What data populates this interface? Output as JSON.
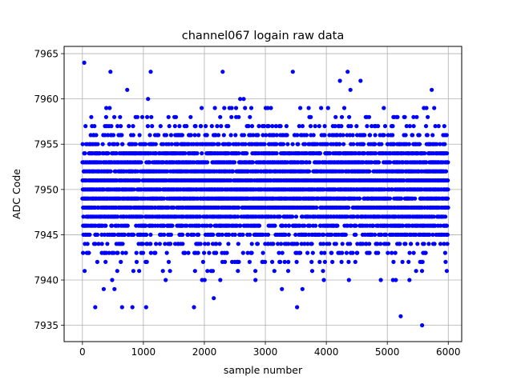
{
  "chart_data": {
    "type": "scatter",
    "title": "channel067 logain raw data",
    "xlabel": "sample number",
    "ylabel": "ADC Code",
    "xlim": [
      -300,
      6220
    ],
    "ylim": [
      7933.2,
      7965.8
    ],
    "xticks": [
      0,
      1000,
      2000,
      3000,
      4000,
      5000,
      6000
    ],
    "yticks": [
      7935,
      7940,
      7945,
      7950,
      7955,
      7960,
      7965
    ],
    "grid": true,
    "series": [
      {
        "color": "#0000ff",
        "marker": "circle",
        "n_samples": 6000,
        "x_step": 1,
        "y_dense_range": [
          7945,
          7958
        ],
        "y_sparse_range": [
          7937,
          7963
        ],
        "outliers": [
          {
            "x": 30,
            "y": 7964
          },
          {
            "x": 460,
            "y": 7963
          },
          {
            "x": 1120,
            "y": 7963
          },
          {
            "x": 2300,
            "y": 7963
          },
          {
            "x": 3450,
            "y": 7963
          },
          {
            "x": 4350,
            "y": 7963
          },
          {
            "x": 5220,
            "y": 7936
          },
          {
            "x": 5570,
            "y": 7935
          },
          {
            "x": 210,
            "y": 7937
          },
          {
            "x": 650,
            "y": 7937
          },
          {
            "x": 820,
            "y": 7937
          },
          {
            "x": 1830,
            "y": 7937
          },
          {
            "x": 3520,
            "y": 7937
          }
        ]
      }
    ]
  }
}
